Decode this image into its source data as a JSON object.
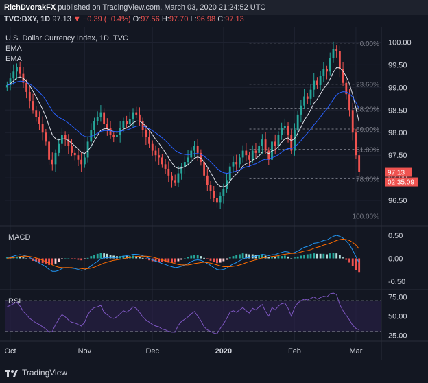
{
  "header": {
    "author": "RichDvorakFX",
    "published": "published on TradingView.com, March 03, 2020 21:24:52 UTC",
    "symbol": "TVC:DXY, 1D",
    "last": "97.13",
    "change": "−0.39 (−0.4%)",
    "open_label": "O:",
    "open": "97.56",
    "high_label": "H:",
    "high": "97.70",
    "low_label": "L:",
    "low": "96.98",
    "close_label": "C:",
    "close": "97.13"
  },
  "legend": {
    "title": "U.S. Dollar Currency Index, 1D, TVC",
    "ema1": "EMA",
    "ema2": "EMA",
    "macd": "MACD",
    "rsi": "RSI"
  },
  "price_tag": {
    "value": "97.13",
    "countdown": "02:35:09"
  },
  "footer": {
    "brand": "TradingView"
  },
  "colors": {
    "up": "#26a69a",
    "down": "#ef5350",
    "ema_fast": "#e0e3eb",
    "ema_slow": "#2962ff",
    "macd_line": "#2196f3",
    "signal_line": "#ff6d00",
    "rsi_line": "#7e57c2",
    "rsi_band": "#2a1f4a"
  },
  "chart_data": [
    {
      "type": "candlestick",
      "title": "U.S. Dollar Currency Index, 1D, TVC",
      "y_ticks": [
        "100.00",
        "99.50",
        "99.00",
        "98.50",
        "98.00",
        "97.50",
        "97.00",
        "96.50"
      ],
      "ylim": [
        96.0,
        100.25
      ],
      "x_ticks": [
        {
          "label": "Oct",
          "index": 1
        },
        {
          "label": "Nov",
          "index": 24
        },
        {
          "label": "Dec",
          "index": 45
        },
        {
          "label": "2020",
          "index": 67
        },
        {
          "label": "Feb",
          "index": 89
        },
        {
          "label": "Mar",
          "index": 108
        }
      ],
      "fibonacci": [
        {
          "label": "0.00%",
          "value": 99.98
        },
        {
          "label": "23.60%",
          "value": 99.07
        },
        {
          "label": "38.20%",
          "value": 98.53
        },
        {
          "label": "50.00%",
          "value": 98.08
        },
        {
          "label": "61.80%",
          "value": 97.63
        },
        {
          "label": "78.60%",
          "value": 96.98
        },
        {
          "label": "100.00%",
          "value": 96.16
        }
      ],
      "closes": [
        99.05,
        99.2,
        99.35,
        99.45,
        99.3,
        99.1,
        98.9,
        98.7,
        98.5,
        98.35,
        98.2,
        98.0,
        97.8,
        97.4,
        97.3,
        97.55,
        97.75,
        97.95,
        97.85,
        97.7,
        97.55,
        97.5,
        97.4,
        97.3,
        97.45,
        97.8,
        98.05,
        98.25,
        98.35,
        98.45,
        98.2,
        98.1,
        97.95,
        97.9,
        97.95,
        98.1,
        98.25,
        98.2,
        98.3,
        98.45,
        98.4,
        98.25,
        98.05,
        97.9,
        97.75,
        97.6,
        97.5,
        97.45,
        97.3,
        97.2,
        97.05,
        96.95,
        96.9,
        97.1,
        97.25,
        97.35,
        97.45,
        97.6,
        97.7,
        97.55,
        97.35,
        97.05,
        96.85,
        96.7,
        96.55,
        96.45,
        96.6,
        96.75,
        96.95,
        97.25,
        97.35,
        97.3,
        97.45,
        97.6,
        97.5,
        97.4,
        97.6,
        97.55,
        97.7,
        97.85,
        97.6,
        97.4,
        97.8,
        97.7,
        97.95,
        98.1,
        98.15,
        97.95,
        97.6,
        98.05,
        98.4,
        98.6,
        98.8,
        98.75,
        98.95,
        99.15,
        99.05,
        99.25,
        99.4,
        99.35,
        99.65,
        99.85,
        99.8,
        99.4,
        99.1,
        98.85,
        98.5,
        98.0,
        97.5,
        97.13
      ],
      "macd": {
        "y_ticks": [
          "0.50",
          "0.00",
          "-0.50"
        ],
        "ylim": [
          -0.62,
          0.62
        ],
        "macd_line": [
          0.02,
          0.03,
          0.05,
          0.07,
          0.08,
          0.07,
          0.05,
          0.02,
          -0.02,
          -0.06,
          -0.1,
          -0.14,
          -0.18,
          -0.24,
          -0.28,
          -0.28,
          -0.26,
          -0.22,
          -0.2,
          -0.2,
          -0.21,
          -0.22,
          -0.24,
          -0.26,
          -0.25,
          -0.21,
          -0.16,
          -0.11,
          -0.06,
          -0.01,
          0.01,
          0.02,
          0.02,
          0.02,
          0.02,
          0.03,
          0.05,
          0.06,
          0.07,
          0.09,
          0.09,
          0.08,
          0.06,
          0.03,
          0.0,
          -0.03,
          -0.06,
          -0.08,
          -0.11,
          -0.13,
          -0.16,
          -0.18,
          -0.2,
          -0.19,
          -0.17,
          -0.14,
          -0.11,
          -0.07,
          -0.04,
          -0.03,
          -0.04,
          -0.07,
          -0.11,
          -0.15,
          -0.2,
          -0.24,
          -0.25,
          -0.24,
          -0.21,
          -0.16,
          -0.12,
          -0.09,
          -0.05,
          -0.01,
          0.01,
          0.02,
          0.04,
          0.05,
          0.07,
          0.09,
          0.08,
          0.06,
          0.08,
          0.08,
          0.11,
          0.13,
          0.15,
          0.14,
          0.11,
          0.13,
          0.16,
          0.2,
          0.24,
          0.26,
          0.29,
          0.33,
          0.34,
          0.36,
          0.39,
          0.4,
          0.44,
          0.48,
          0.5,
          0.48,
          0.44,
          0.38,
          0.3,
          0.18,
          0.04,
          -0.1
        ],
        "signal_line": [
          0.0,
          0.01,
          0.02,
          0.03,
          0.04,
          0.05,
          0.05,
          0.04,
          0.03,
          0.01,
          -0.01,
          -0.04,
          -0.07,
          -0.1,
          -0.14,
          -0.17,
          -0.19,
          -0.2,
          -0.2,
          -0.2,
          -0.2,
          -0.21,
          -0.21,
          -0.22,
          -0.23,
          -0.22,
          -0.21,
          -0.19,
          -0.16,
          -0.13,
          -0.1,
          -0.08,
          -0.06,
          -0.04,
          -0.03,
          -0.02,
          -0.01,
          0.01,
          0.02,
          0.03,
          0.04,
          0.05,
          0.05,
          0.05,
          0.04,
          0.03,
          0.01,
          -0.01,
          -0.03,
          -0.05,
          -0.07,
          -0.09,
          -0.11,
          -0.13,
          -0.14,
          -0.14,
          -0.14,
          -0.13,
          -0.11,
          -0.1,
          -0.09,
          -0.08,
          -0.09,
          -0.1,
          -0.12,
          -0.14,
          -0.16,
          -0.18,
          -0.18,
          -0.18,
          -0.17,
          -0.16,
          -0.14,
          -0.12,
          -0.09,
          -0.07,
          -0.05,
          -0.03,
          -0.01,
          0.01,
          0.02,
          0.03,
          0.04,
          0.05,
          0.06,
          0.08,
          0.09,
          0.1,
          0.11,
          0.11,
          0.12,
          0.14,
          0.16,
          0.17,
          0.19,
          0.22,
          0.24,
          0.26,
          0.29,
          0.31,
          0.33,
          0.36,
          0.39,
          0.41,
          0.42,
          0.41,
          0.39,
          0.35,
          0.29,
          0.21
        ]
      },
      "rsi": {
        "y_ticks": [
          "75.00",
          "50.00",
          "25.00"
        ],
        "ylim": [
          20,
          80
        ],
        "band": [
          30,
          70
        ],
        "values": [
          62,
          64,
          66,
          68,
          63,
          56,
          52,
          47,
          44,
          41,
          39,
          36,
          33,
          29,
          30,
          39,
          46,
          52,
          49,
          45,
          42,
          41,
          39,
          37,
          42,
          52,
          58,
          61,
          62,
          64,
          55,
          52,
          48,
          47,
          49,
          53,
          57,
          55,
          58,
          62,
          60,
          55,
          49,
          45,
          42,
          39,
          37,
          36,
          33,
          32,
          30,
          29,
          29,
          38,
          43,
          46,
          49,
          53,
          56,
          50,
          44,
          36,
          32,
          30,
          28,
          27,
          34,
          40,
          47,
          55,
          57,
          55,
          58,
          61,
          57,
          54,
          60,
          58,
          62,
          65,
          56,
          50,
          61,
          58,
          63,
          66,
          67,
          60,
          50,
          61,
          67,
          70,
          72,
          71,
          73,
          75,
          72,
          74,
          76,
          75,
          79,
          80,
          78,
          65,
          57,
          51,
          45,
          38,
          34,
          32
        ]
      }
    }
  ]
}
